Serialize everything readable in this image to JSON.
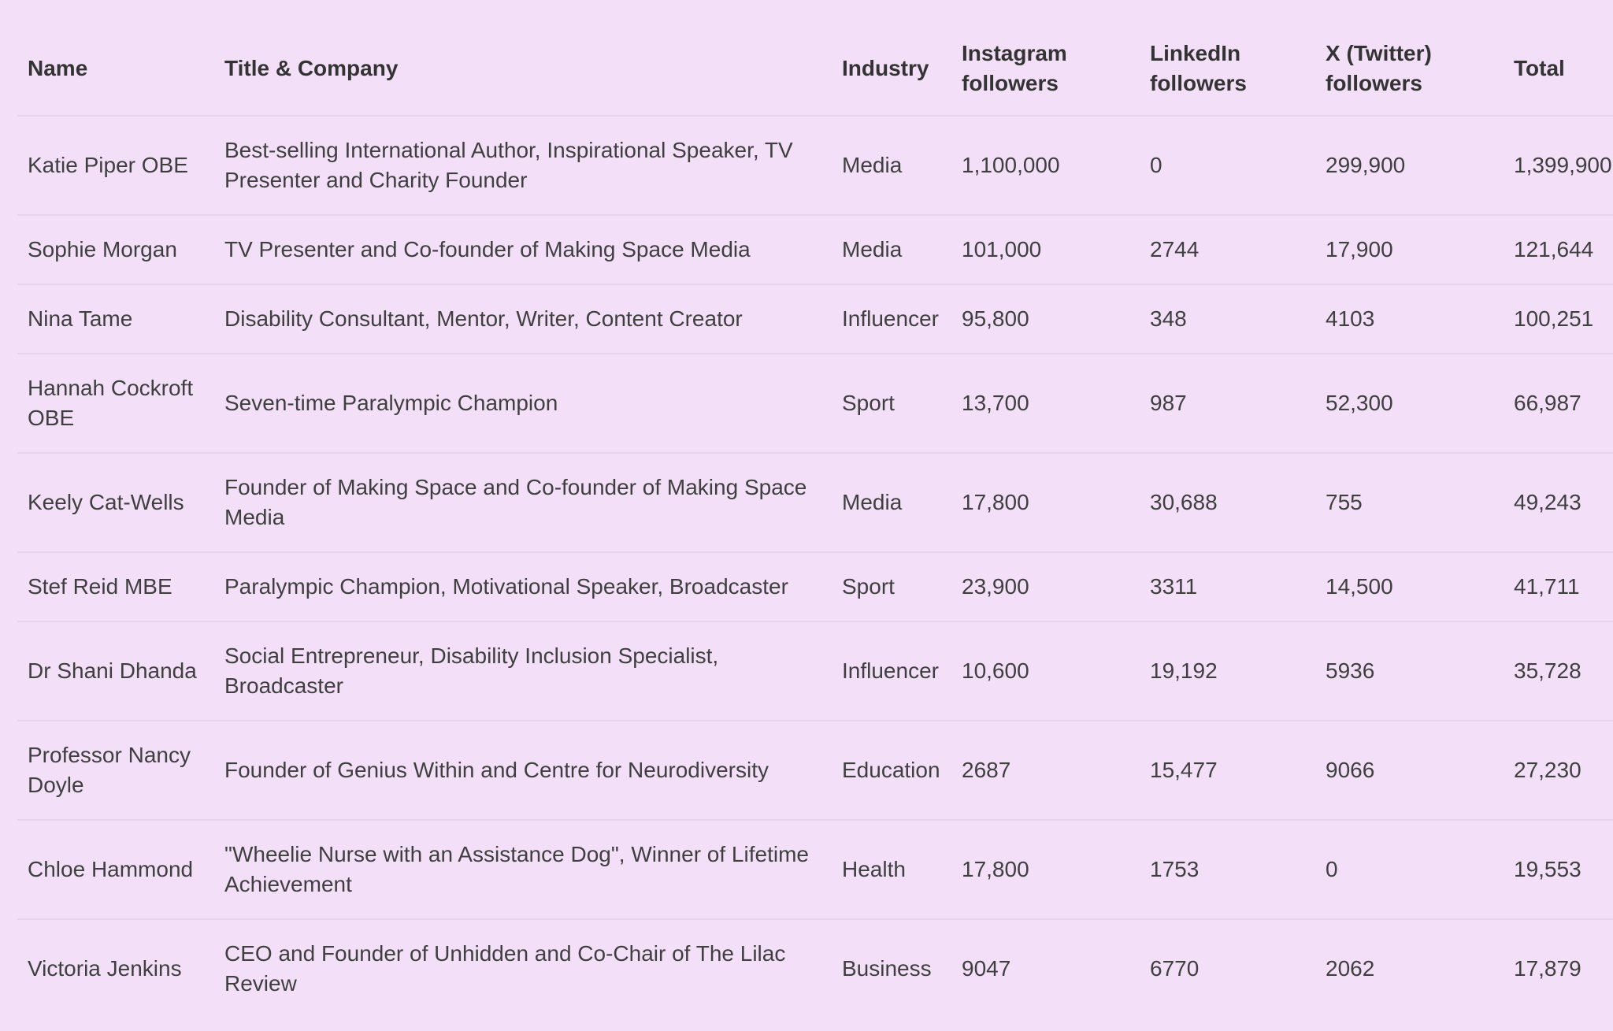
{
  "table": {
    "headers": {
      "name": "Name",
      "title": "Title & Company",
      "industry": "Industry",
      "instagram": "Instagram followers",
      "linkedin": "LinkedIn followers",
      "x": "X (Twitter) followers",
      "total": "Total"
    },
    "rows": [
      {
        "name": "Katie Piper OBE",
        "title": "Best-selling International Author, Inspirational Speaker, TV Presenter and Charity Founder",
        "industry": "Media",
        "instagram": "1,100,000",
        "linkedin": "0",
        "x": "299,900",
        "total": "1,399,900"
      },
      {
        "name": "Sophie Morgan",
        "title": "TV Presenter and Co-founder of Making Space Media",
        "industry": "Media",
        "instagram": "101,000",
        "linkedin": "2744",
        "x": "17,900",
        "total": "121,644"
      },
      {
        "name": "Nina Tame",
        "title": "Disability Consultant, Mentor, Writer, Content Creator",
        "industry": "Influencer",
        "instagram": "95,800",
        "linkedin": "348",
        "x": "4103",
        "total": "100,251"
      },
      {
        "name": "Hannah Cockroft OBE",
        "title": "Seven-time Paralympic Champion",
        "industry": "Sport",
        "instagram": "13,700",
        "linkedin": "987",
        "x": "52,300",
        "total": "66,987"
      },
      {
        "name": "Keely Cat-Wells",
        "title": "Founder of Making Space and Co-founder of Making Space Media",
        "industry": "Media",
        "instagram": "17,800",
        "linkedin": "30,688",
        "x": "755",
        "total": "49,243"
      },
      {
        "name": "Stef Reid MBE",
        "title": "Paralympic Champion, Motivational Speaker, Broadcaster",
        "industry": "Sport",
        "instagram": "23,900",
        "linkedin": "3311",
        "x": "14,500",
        "total": "41,711"
      },
      {
        "name": "Dr Shani Dhanda",
        "title": "Social Entrepreneur, Disability Inclusion Specialist, Broadcaster",
        "industry": "Influencer",
        "instagram": "10,600",
        "linkedin": "19,192",
        "x": "5936",
        "total": "35,728"
      },
      {
        "name": "Professor Nancy Doyle",
        "title": "Founder of Genius Within and Centre for Neurodiversity",
        "industry": "Education",
        "instagram": "2687",
        "linkedin": "15,477",
        "x": "9066",
        "total": "27,230"
      },
      {
        "name": "Chloe Hammond",
        "title": "\"Wheelie Nurse with an Assistance Dog\", Winner of Lifetime Achievement",
        "industry": "Health",
        "instagram": "17,800",
        "linkedin": "1753",
        "x": "0",
        "total": "19,553"
      },
      {
        "name": "Victoria Jenkins",
        "title": "CEO and Founder of Unhidden and Co-Chair of The Lilac Review",
        "industry": "Business",
        "instagram": "9047",
        "linkedin": "6770",
        "x": "2062",
        "total": "17,879"
      }
    ]
  }
}
